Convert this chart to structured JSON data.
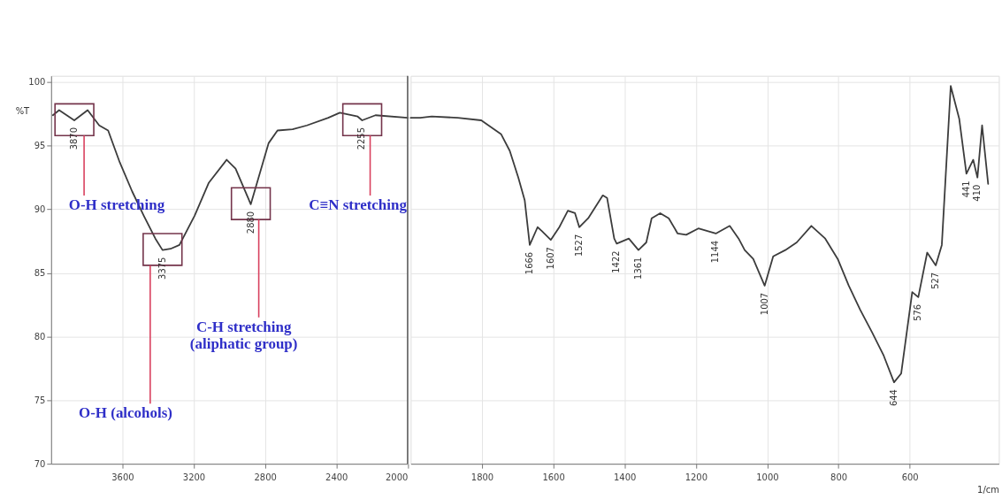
{
  "chart_data": [
    {
      "type": "line",
      "x": [
        3990,
        3955,
        3870,
        3795,
        3730,
        3680,
        3615,
        3545,
        3480,
        3415,
        3375,
        3330,
        3280,
        3195,
        3115,
        3015,
        2965,
        2895,
        2880,
        2830,
        2780,
        2730,
        2645,
        2565,
        2445,
        2380,
        2280,
        2255,
        2180,
        2000
      ],
      "series": [
        {
          "color": "#3c3c3c",
          "values": [
            97.4,
            97.8,
            97.0,
            97.8,
            96.6,
            96.2,
            93.7,
            91.4,
            89.5,
            87.7,
            86.8,
            86.9,
            87.2,
            89.5,
            92.1,
            93.9,
            93.2,
            90.9,
            90.4,
            92.8,
            95.2,
            96.2,
            96.3,
            96.6,
            97.2,
            97.6,
            97.3,
            97.0,
            97.4,
            97.2
          ]
        }
      ],
      "xlim": [
        4000,
        2000
      ],
      "xticks": [
        3600,
        3200,
        2800,
        2400,
        2000
      ],
      "ylim": [
        70,
        100.5
      ],
      "yticks": [
        70,
        75,
        80,
        85,
        90,
        95,
        100
      ],
      "ylabel": "%T",
      "grid": true,
      "ref_lines": [
        {
          "axis": "x",
          "value": 2000,
          "color": "#5a5a5a"
        }
      ],
      "annotations": [
        {
          "text": "O-H stretching",
          "x": 3815,
          "y": 95.8
        },
        {
          "text": "O-H (alcohols)",
          "x": 3444,
          "y": 85.6
        },
        {
          "text": "C-H stretching\n(aliphatic group)",
          "x": 2835,
          "y": 89.2
        },
        {
          "text": "C≡N stretching",
          "x": 2210,
          "y": 95.8
        },
        {
          "text": "3870",
          "x": 3870,
          "y": 97.0
        },
        {
          "text": "3375",
          "x": 3375,
          "y": 86.8
        },
        {
          "text": "2880",
          "x": 2880,
          "y": 90.4
        },
        {
          "text": "2255",
          "x": 2255,
          "y": 97.0
        }
      ]
    },
    {
      "type": "line",
      "x": [
        2000,
        1973,
        1941,
        1868,
        1802,
        1746,
        1722,
        1698,
        1680,
        1666,
        1644,
        1632,
        1607,
        1583,
        1559,
        1539,
        1527,
        1502,
        1461,
        1449,
        1429,
        1422,
        1388,
        1361,
        1339,
        1324,
        1300,
        1276,
        1251,
        1227,
        1193,
        1144,
        1105,
        1080,
        1063,
        1039,
        1007,
        983,
        949,
        917,
        876,
        837,
        802,
        771,
        739,
        705,
        673,
        644,
        624,
        593,
        576,
        551,
        527,
        510,
        485,
        461,
        441,
        422,
        410,
        397,
        380
      ],
      "series": [
        {
          "color": "#3c3c3c",
          "values": [
            97.2,
            97.2,
            97.3,
            97.2,
            97.0,
            95.9,
            94.6,
            92.5,
            90.7,
            87.2,
            88.6,
            88.3,
            87.6,
            88.6,
            89.9,
            89.7,
            88.6,
            89.3,
            91.1,
            90.9,
            87.7,
            87.3,
            87.7,
            86.8,
            87.4,
            89.3,
            89.7,
            89.3,
            88.1,
            88.0,
            88.5,
            88.1,
            88.7,
            87.7,
            86.8,
            86.1,
            84.0,
            86.3,
            86.8,
            87.4,
            88.7,
            87.7,
            86.1,
            84.0,
            82.1,
            80.3,
            78.5,
            76.4,
            77.1,
            83.5,
            83.1,
            86.6,
            85.6,
            87.2,
            99.7,
            97.1,
            92.8,
            93.9,
            92.5,
            96.6,
            92.0
          ]
        }
      ],
      "xlim": [
        2000,
        350
      ],
      "xticks": [
        1800,
        1600,
        1400,
        1200,
        1000,
        800,
        600
      ],
      "ylim": [
        70,
        100.5
      ],
      "yticks": [
        70,
        75,
        80,
        85,
        90,
        95,
        100
      ],
      "xlabel": "1/cm",
      "grid": true,
      "tick_labels": "x",
      "annotations": [
        {
          "text": "1666",
          "x": 1666,
          "y": 87.2
        },
        {
          "text": "1607",
          "x": 1607,
          "y": 87.6
        },
        {
          "text": "1527",
          "x": 1527,
          "y": 88.6
        },
        {
          "text": "1422",
          "x": 1422,
          "y": 87.3
        },
        {
          "text": "1361",
          "x": 1361,
          "y": 86.8
        },
        {
          "text": "1144",
          "x": 1144,
          "y": 88.1
        },
        {
          "text": "1007",
          "x": 1007,
          "y": 84.0
        },
        {
          "text": "644",
          "x": 644,
          "y": 76.4
        },
        {
          "text": "576",
          "x": 576,
          "y": 83.1
        },
        {
          "text": "527",
          "x": 527,
          "y": 85.6
        },
        {
          "text": "441",
          "x": 441,
          "y": 92.8
        },
        {
          "text": "410",
          "x": 410,
          "y": 92.5
        }
      ]
    }
  ]
}
